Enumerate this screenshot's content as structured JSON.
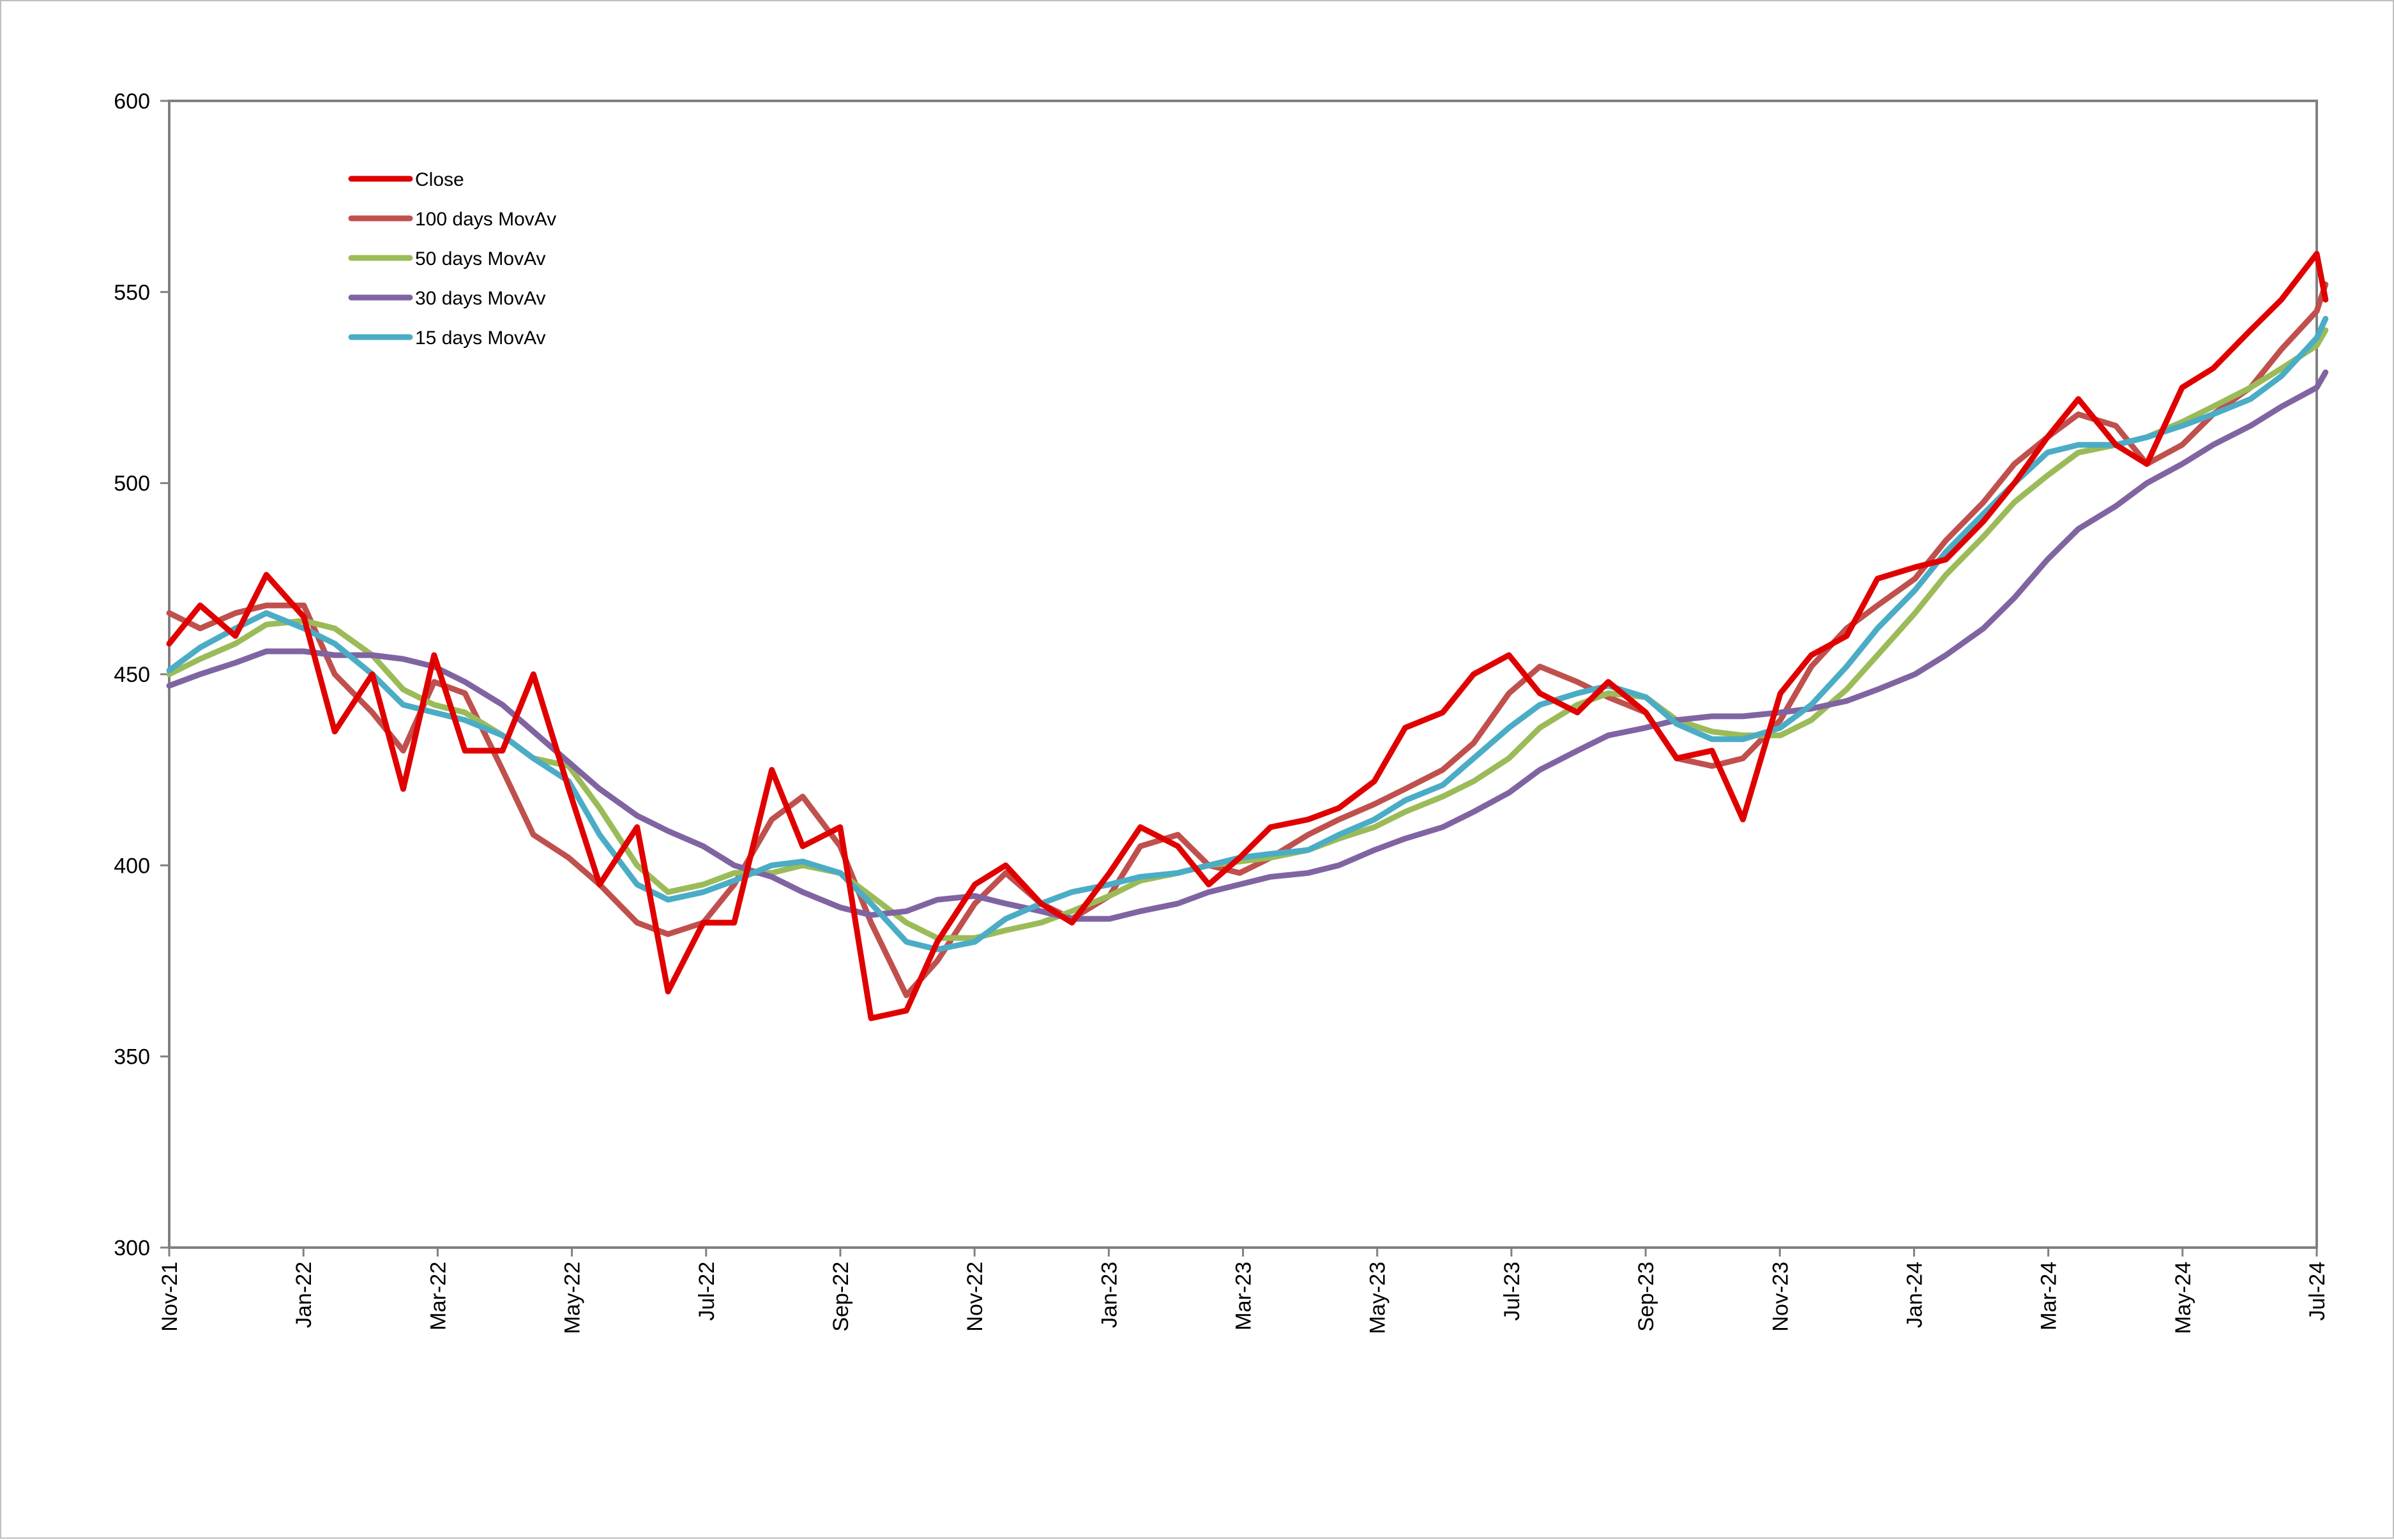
{
  "chart_data": {
    "type": "line",
    "title": "",
    "xlabel": "",
    "ylabel": "",
    "ylim": [
      300,
      600
    ],
    "y_ticks": [
      "300",
      "350",
      "400",
      "450",
      "500",
      "550",
      "600"
    ],
    "x_tick_labels": [
      "Nov-21",
      "Jan-22",
      "Mar-22",
      "May-22",
      "Jul-22",
      "Sep-22",
      "Nov-22",
      "Jan-23",
      "Mar-23",
      "May-23",
      "Jul-23",
      "Sep-23",
      "Nov-23",
      "Jan-24",
      "Mar-24",
      "May-24",
      "Jul-24"
    ],
    "x_range": [
      "2021-11",
      "2024-07"
    ],
    "grid": false,
    "legend_position": "top-left",
    "x": [
      "2021-11-01",
      "2021-11-15",
      "2021-12-01",
      "2021-12-15",
      "2022-01-01",
      "2022-01-15",
      "2022-02-01",
      "2022-02-15",
      "2022-03-01",
      "2022-03-15",
      "2022-04-01",
      "2022-04-15",
      "2022-05-01",
      "2022-05-15",
      "2022-06-01",
      "2022-06-15",
      "2022-07-01",
      "2022-07-15",
      "2022-08-01",
      "2022-08-15",
      "2022-09-01",
      "2022-09-15",
      "2022-10-01",
      "2022-10-15",
      "2022-11-01",
      "2022-11-15",
      "2022-12-01",
      "2022-12-15",
      "2023-01-01",
      "2023-01-15",
      "2023-02-01",
      "2023-02-15",
      "2023-03-01",
      "2023-03-15",
      "2023-04-01",
      "2023-04-15",
      "2023-05-01",
      "2023-05-15",
      "2023-06-01",
      "2023-06-15",
      "2023-07-01",
      "2023-07-15",
      "2023-08-01",
      "2023-08-15",
      "2023-09-01",
      "2023-09-15",
      "2023-10-01",
      "2023-10-15",
      "2023-11-01",
      "2023-11-15",
      "2023-12-01",
      "2023-12-15",
      "2024-01-01",
      "2024-01-15",
      "2024-02-01",
      "2024-02-15",
      "2024-03-01",
      "2024-03-15",
      "2024-04-01",
      "2024-04-15",
      "2024-05-01",
      "2024-05-15",
      "2024-06-01",
      "2024-06-15",
      "2024-07-01",
      "2024-07-05"
    ],
    "series": [
      {
        "name": "Close",
        "color": "#e00000",
        "values": [
          458,
          468,
          460,
          476,
          465,
          435,
          450,
          420,
          455,
          430,
          430,
          450,
          420,
          395,
          410,
          367,
          385,
          385,
          425,
          405,
          410,
          360,
          362,
          380,
          395,
          400,
          390,
          385,
          398,
          410,
          405,
          395,
          402,
          410,
          412,
          415,
          422,
          436,
          440,
          450,
          455,
          445,
          440,
          448,
          440,
          428,
          430,
          412,
          445,
          455,
          460,
          475,
          478,
          480,
          490,
          500,
          512,
          522,
          510,
          505,
          525,
          530,
          540,
          548,
          560,
          548
        ]
      },
      {
        "name": "100 days MovAv",
        "color": "#c0504d",
        "values": [
          466,
          462,
          466,
          468,
          468,
          450,
          440,
          430,
          448,
          445,
          425,
          408,
          402,
          395,
          385,
          382,
          385,
          395,
          412,
          418,
          405,
          385,
          366,
          375,
          390,
          398,
          390,
          386,
          392,
          405,
          408,
          400,
          398,
          402,
          408,
          412,
          416,
          420,
          425,
          432,
          445,
          452,
          448,
          444,
          440,
          428,
          426,
          428,
          438,
          452,
          462,
          468,
          475,
          485,
          495,
          505,
          512,
          518,
          515,
          505,
          510,
          518,
          525,
          535,
          545,
          552
        ]
      },
      {
        "name": "50 days MovAv",
        "color": "#9bbb59",
        "values": [
          450,
          454,
          458,
          463,
          464,
          462,
          455,
          446,
          442,
          440,
          434,
          428,
          426,
          415,
          400,
          393,
          395,
          398,
          398,
          400,
          398,
          392,
          385,
          381,
          381,
          383,
          385,
          388,
          392,
          396,
          398,
          400,
          401,
          402,
          404,
          407,
          410,
          414,
          418,
          422,
          428,
          436,
          442,
          445,
          444,
          438,
          435,
          434,
          434,
          438,
          446,
          455,
          466,
          476,
          486,
          495,
          502,
          508,
          510,
          512,
          516,
          520,
          525,
          530,
          536,
          540
        ]
      },
      {
        "name": "30 days MovAv",
        "color": "#8064a2",
        "values": [
          447,
          450,
          453,
          456,
          456,
          455,
          455,
          454,
          452,
          448,
          442,
          435,
          427,
          420,
          413,
          409,
          405,
          400,
          397,
          393,
          389,
          387,
          388,
          391,
          392,
          390,
          388,
          386,
          386,
          388,
          390,
          393,
          395,
          397,
          398,
          400,
          404,
          407,
          410,
          414,
          419,
          425,
          430,
          434,
          436,
          438,
          439,
          439,
          440,
          441,
          443,
          446,
          450,
          455,
          462,
          470,
          480,
          488,
          494,
          500,
          505,
          510,
          515,
          520,
          525,
          529
        ]
      },
      {
        "name": "15 days MovAv",
        "color": "#4bacc6",
        "values": [
          451,
          457,
          462,
          466,
          462,
          458,
          450,
          442,
          440,
          438,
          434,
          428,
          422,
          408,
          395,
          391,
          393,
          396,
          400,
          401,
          398,
          390,
          380,
          378,
          380,
          386,
          390,
          393,
          395,
          397,
          398,
          400,
          402,
          403,
          404,
          408,
          412,
          417,
          421,
          428,
          436,
          442,
          445,
          447,
          444,
          437,
          433,
          433,
          436,
          442,
          452,
          462,
          472,
          482,
          492,
          500,
          508,
          510,
          510,
          512,
          515,
          518,
          522,
          528,
          538,
          543
        ]
      }
    ]
  }
}
